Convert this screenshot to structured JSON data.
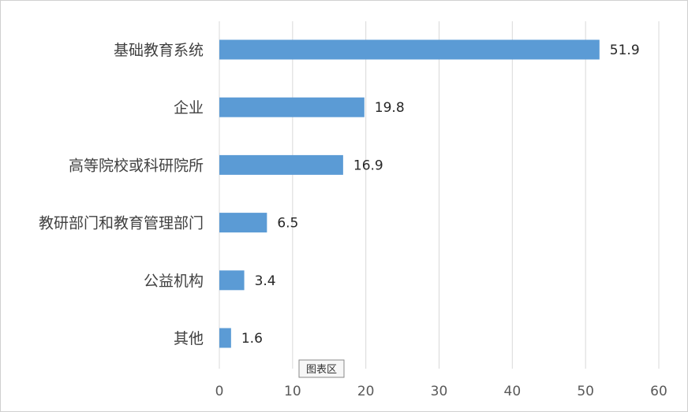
{
  "chart_data": {
    "type": "bar",
    "orientation": "horizontal",
    "categories": [
      "基础教育系统",
      "企业",
      "高等院校或科研院所",
      "教研部门和教育管理部门",
      "公益机构",
      "其他"
    ],
    "values": [
      51.9,
      19.8,
      16.9,
      6.5,
      3.4,
      1.6
    ],
    "data_labels": [
      "51.9",
      "19.8",
      "16.9",
      "6.5",
      "3.4",
      "1.6"
    ],
    "xlim": [
      0,
      60
    ],
    "x_ticks": [
      0,
      10,
      20,
      30,
      40,
      50,
      60
    ],
    "x_tick_labels": [
      "0",
      "10",
      "20",
      "30",
      "40",
      "50",
      "60"
    ],
    "grid": "vertical",
    "legend": "none",
    "bar_color": "#5b9bd5",
    "grid_color": "#d9d9d9"
  },
  "tooltip": {
    "text": "图表区"
  }
}
